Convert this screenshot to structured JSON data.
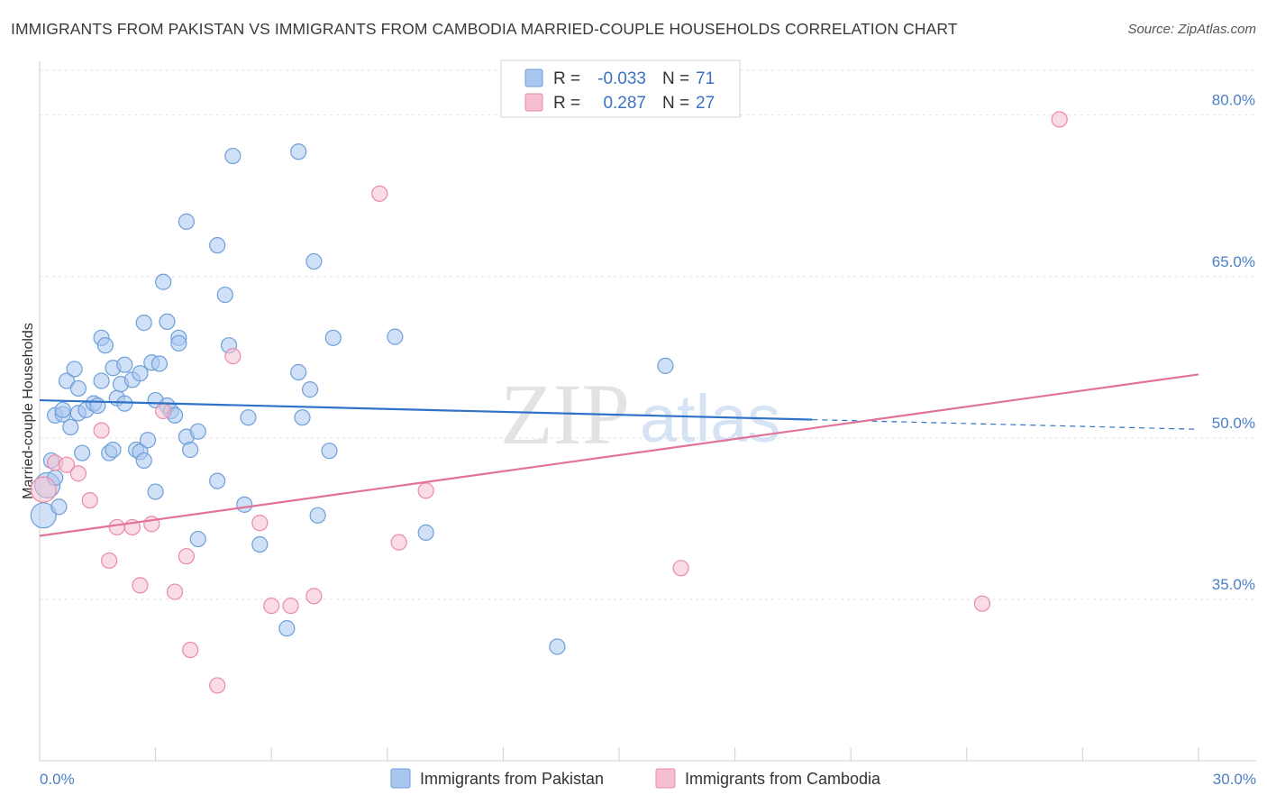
{
  "header": {
    "title": "IMMIGRANTS FROM PAKISTAN VS IMMIGRANTS FROM CAMBODIA MARRIED-COUPLE HOUSEHOLDS CORRELATION CHART",
    "source": "Source: ZipAtlas.com"
  },
  "watermark": {
    "zip": "ZIP",
    "atlas": "atlas"
  },
  "legend": {
    "r_label": "R =",
    "n_label": "N =",
    "items": [
      {
        "r": "-0.033",
        "n": "71",
        "color": "#a9c6ee"
      },
      {
        "r": "0.287",
        "n": "27",
        "color": "#f6b8cc"
      }
    ]
  },
  "colors": {
    "pakistan_fill": "#a9c6ee",
    "pakistan_stroke": "#6d9fda",
    "pakistan_line": "#2f72c7",
    "cambodia_fill": "#f6bfd0",
    "cambodia_stroke": "#ea8aa9",
    "cambodia_line": "#e2729a",
    "tick_text": "#4a7fc6",
    "grid": "#e2e2e2"
  },
  "chart_data": {
    "type": "scatter",
    "title": "IMMIGRANTS FROM PAKISTAN VS IMMIGRANTS FROM CAMBODIA MARRIED-COUPLE HOUSEHOLDS CORRELATION CHART",
    "xlabel": "",
    "ylabel": "Married-couple Households",
    "xlim": [
      0,
      30
    ],
    "ylim": [
      20,
      85
    ],
    "x_tick_labels": [
      "0.0%",
      "30.0%"
    ],
    "y_ticks": [
      35,
      50,
      65,
      80
    ],
    "y_tick_labels": [
      "35.0%",
      "50.0%",
      "65.0%",
      "80.0%"
    ],
    "grid": true,
    "legend_position": "top-center",
    "series": [
      {
        "name": "Immigrants from Pakistan",
        "r": -0.033,
        "n": 71,
        "trend": {
          "x0": 0,
          "y0": 53.5,
          "x1": 20.0,
          "y1": 51.7,
          "dash_to_x": 30,
          "dash_to_y": 50.8
        },
        "points": [
          [
            0.1,
            42.8
          ],
          [
            0.2,
            45.6
          ],
          [
            0.3,
            47.9
          ],
          [
            0.4,
            46.3
          ],
          [
            0.5,
            43.6
          ],
          [
            0.4,
            52.1
          ],
          [
            0.6,
            52.2
          ],
          [
            0.6,
            52.6
          ],
          [
            0.7,
            55.3
          ],
          [
            0.8,
            51.0
          ],
          [
            0.9,
            56.4
          ],
          [
            1.0,
            52.3
          ],
          [
            1.0,
            54.6
          ],
          [
            1.1,
            48.6
          ],
          [
            1.2,
            52.6
          ],
          [
            1.4,
            53.2
          ],
          [
            1.5,
            53.0
          ],
          [
            1.6,
            59.3
          ],
          [
            1.6,
            55.3
          ],
          [
            1.7,
            58.6
          ],
          [
            1.8,
            48.6
          ],
          [
            1.9,
            56.5
          ],
          [
            1.9,
            48.9
          ],
          [
            2.0,
            53.7
          ],
          [
            2.1,
            55.0
          ],
          [
            2.2,
            56.8
          ],
          [
            2.2,
            53.2
          ],
          [
            2.4,
            55.4
          ],
          [
            2.5,
            48.9
          ],
          [
            2.6,
            56.0
          ],
          [
            2.6,
            48.7
          ],
          [
            2.7,
            60.7
          ],
          [
            2.7,
            47.9
          ],
          [
            2.8,
            49.8
          ],
          [
            2.9,
            57.0
          ],
          [
            3.0,
            53.5
          ],
          [
            3.0,
            45.0
          ],
          [
            3.1,
            56.9
          ],
          [
            3.2,
            64.5
          ],
          [
            3.3,
            60.8
          ],
          [
            3.3,
            53.0
          ],
          [
            3.4,
            52.5
          ],
          [
            3.5,
            52.1
          ],
          [
            3.6,
            59.3
          ],
          [
            3.6,
            58.8
          ],
          [
            3.8,
            50.1
          ],
          [
            3.8,
            70.1
          ],
          [
            3.9,
            48.9
          ],
          [
            4.1,
            50.6
          ],
          [
            4.1,
            40.6
          ],
          [
            4.6,
            67.9
          ],
          [
            4.6,
            46.0
          ],
          [
            4.8,
            63.3
          ],
          [
            4.9,
            58.6
          ],
          [
            5.0,
            76.2
          ],
          [
            5.3,
            43.8
          ],
          [
            5.4,
            51.9
          ],
          [
            5.7,
            40.1
          ],
          [
            6.4,
            32.3
          ],
          [
            6.7,
            76.6
          ],
          [
            6.7,
            56.1
          ],
          [
            6.8,
            51.9
          ],
          [
            7.0,
            54.5
          ],
          [
            7.1,
            66.4
          ],
          [
            7.2,
            42.8
          ],
          [
            7.5,
            48.8
          ],
          [
            7.6,
            59.3
          ],
          [
            9.2,
            59.4
          ],
          [
            10.0,
            41.2
          ],
          [
            13.4,
            30.6
          ],
          [
            16.2,
            56.7
          ]
        ]
      },
      {
        "name": "Immigrants from Cambodia",
        "r": 0.287,
        "n": 27,
        "trend": {
          "x0": 0,
          "y0": 40.9,
          "x1": 30,
          "y1": 55.9
        },
        "points": [
          [
            0.1,
            45.2
          ],
          [
            0.4,
            47.7
          ],
          [
            0.7,
            47.5
          ],
          [
            1.0,
            46.7
          ],
          [
            1.3,
            44.2
          ],
          [
            1.6,
            50.7
          ],
          [
            1.8,
            38.6
          ],
          [
            2.0,
            41.7
          ],
          [
            2.4,
            41.7
          ],
          [
            2.6,
            36.3
          ],
          [
            2.9,
            42.0
          ],
          [
            3.2,
            52.5
          ],
          [
            3.5,
            35.7
          ],
          [
            3.8,
            39.0
          ],
          [
            3.9,
            30.3
          ],
          [
            4.6,
            27.0
          ],
          [
            5.0,
            57.6
          ],
          [
            5.7,
            42.1
          ],
          [
            6.0,
            34.4
          ],
          [
            6.5,
            34.4
          ],
          [
            7.1,
            35.3
          ],
          [
            8.8,
            72.7
          ],
          [
            9.3,
            40.3
          ],
          [
            10.0,
            45.1
          ],
          [
            16.6,
            37.9
          ],
          [
            24.4,
            34.6
          ],
          [
            26.4,
            79.6
          ]
        ]
      }
    ]
  }
}
